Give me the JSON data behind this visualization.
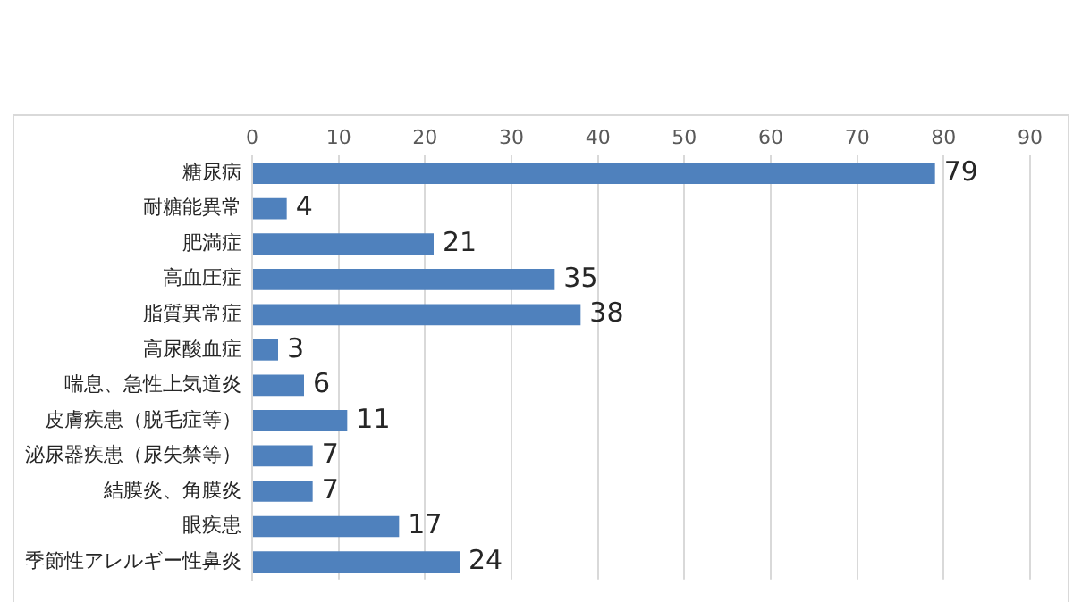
{
  "chart_data": {
    "type": "bar",
    "orientation": "horizontal",
    "categories": [
      "糖尿病",
      "耐糖能異常",
      "肥満症",
      "高血圧症",
      "脂質異常症",
      "高尿酸血症",
      "喘息、急性上気道炎",
      "皮膚疾患（脱毛症等）",
      "泌尿器疾患（尿失禁等）",
      "結膜炎、角膜炎",
      "眼疾患",
      "季節性アレルギー性鼻炎"
    ],
    "values": [
      79,
      4,
      21,
      35,
      38,
      3,
      6,
      11,
      7,
      7,
      17,
      24
    ],
    "color": "#4f81bd",
    "xlim": [
      0,
      90
    ],
    "xticks": [
      0,
      10,
      20,
      30,
      40,
      50,
      60,
      70,
      80,
      90
    ],
    "grid": "x",
    "data_labels": true,
    "legend": false
  }
}
